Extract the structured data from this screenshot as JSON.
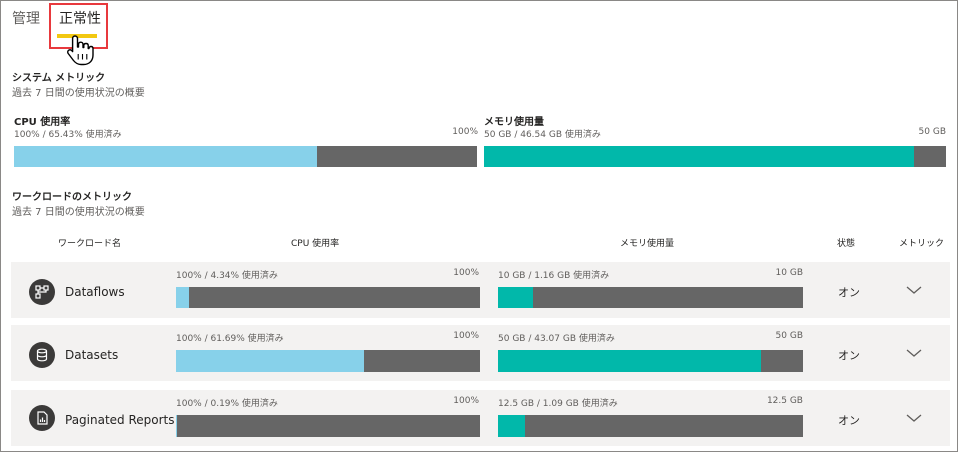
{
  "tabs": {
    "manage": "管理",
    "health": "正常性"
  },
  "system": {
    "title": "システム メトリック",
    "subtitle": "過去 7 日間の使用状況の概要",
    "cpu": {
      "label": "CPU 使用率",
      "used": "100% / 65.43% 使用済み",
      "max": "100%",
      "fraction": 0.6543,
      "color": "#87d1ea"
    },
    "memory": {
      "label": "メモリ使用量",
      "used": "50 GB / 46.54 GB 使用済み",
      "max": "50 GB",
      "fraction": 0.9308,
      "color": "#01b8aa"
    }
  },
  "workloads": {
    "title": "ワークロードのメトリック",
    "subtitle": "過去 7 日間の使用状況の概要",
    "headers": {
      "name": "ワークロード名",
      "cpu": "CPU 使用率",
      "memory": "メモリ使用量",
      "status": "状態",
      "metrics": "メトリック"
    },
    "rows": [
      {
        "name": "Dataflows",
        "icon": "dataflow-icon",
        "cpu_used": "100% / 4.34% 使用済み",
        "cpu_max": "100%",
        "cpu_fraction": 0.0434,
        "mem_used": "10 GB / 1.16 GB 使用済み",
        "mem_max": "10 GB",
        "mem_fraction": 0.116,
        "status": "オン"
      },
      {
        "name": "Datasets",
        "icon": "database-icon",
        "cpu_used": "100% / 61.69% 使用済み",
        "cpu_max": "100%",
        "cpu_fraction": 0.6169,
        "mem_used": "50 GB / 43.07 GB 使用済み",
        "mem_max": "50 GB",
        "mem_fraction": 0.8614,
        "status": "オン"
      },
      {
        "name": "Paginated Reports",
        "icon": "report-icon",
        "cpu_used": "100% / 0.19% 使用済み",
        "cpu_max": "100%",
        "cpu_fraction": 0.0019,
        "mem_used": "12.5 GB / 1.09 GB 使用済み",
        "mem_max": "12.5 GB",
        "mem_fraction": 0.0872,
        "status": "オン"
      }
    ]
  }
}
